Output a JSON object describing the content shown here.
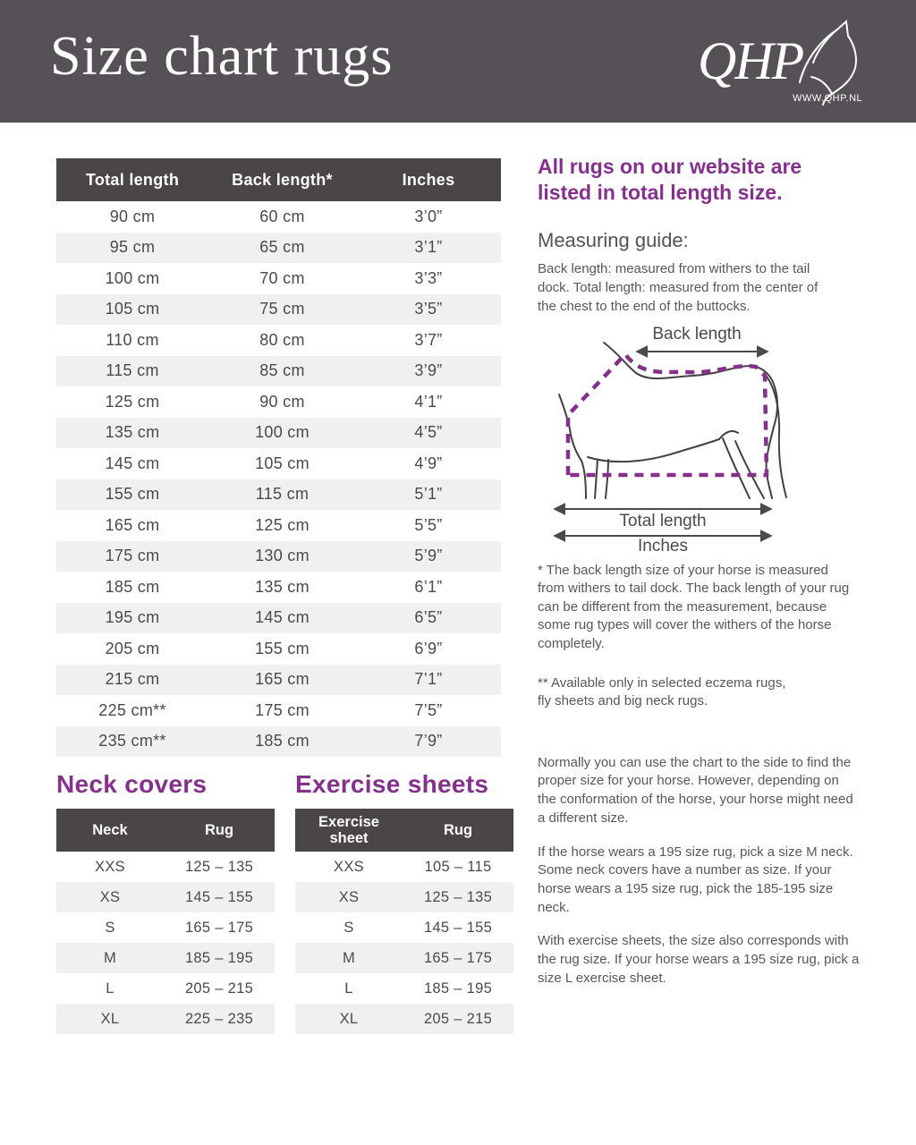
{
  "colors": {
    "accent_purple": "#84308c",
    "header_bg": "#565156",
    "table_header_bg": "#4a4549",
    "row_alt_bg": "#f1f0f1",
    "body_text": "#5b565c"
  },
  "header": {
    "title": "Size chart rugs",
    "logo_text": "QHP",
    "logo_url": "WWW.QHP.NL"
  },
  "main_table": {
    "headers": [
      "Total length",
      "Back length*",
      "Inches"
    ],
    "rows": [
      [
        "90 cm",
        "60 cm",
        "3’0”"
      ],
      [
        "95 cm",
        "65 cm",
        "3’1”"
      ],
      [
        "100 cm",
        "70 cm",
        "3’3”"
      ],
      [
        "105 cm",
        "75 cm",
        "3’5”"
      ],
      [
        "110 cm",
        "80 cm",
        "3’7”"
      ],
      [
        "115 cm",
        "85 cm",
        "3’9”"
      ],
      [
        "125 cm",
        "90 cm",
        "4’1”"
      ],
      [
        "135 cm",
        "100 cm",
        "4’5”"
      ],
      [
        "145 cm",
        "105 cm",
        "4’9”"
      ],
      [
        "155 cm",
        "115 cm",
        "5’1”"
      ],
      [
        "165 cm",
        "125 cm",
        "5’5”"
      ],
      [
        "175 cm",
        "130 cm",
        "5’9”"
      ],
      [
        "185 cm",
        "135 cm",
        "6’1”"
      ],
      [
        "195 cm",
        "145 cm",
        "6’5”"
      ],
      [
        "205 cm",
        "155 cm",
        "6’9”"
      ],
      [
        "215 cm",
        "165 cm",
        "7’1”"
      ],
      [
        "225 cm**",
        "175 cm",
        "7’5”"
      ],
      [
        "235 cm**",
        "185 cm",
        "7’9”"
      ]
    ]
  },
  "side": {
    "intro": "All rugs on our website are listed in total length size.",
    "measuring_guide_title": "Measuring guide:",
    "guide_line1": "Back length: measured from withers to the tail dock.",
    "guide_line2": "Total length: measured from the center of the chest to the end of the buttocks.",
    "diagram": {
      "back_length_label": "Back length",
      "total_length_label": "Total length",
      "inches_label": "Inches"
    },
    "footnote1": "* The back length size of your horse is measured from withers to tail dock. The back length of your rug can be different from the measurement, because some rug types will cover the withers of the horse completely.",
    "footnote2": "** Available only in selected eczema rugs,\nfly sheets and big neck rugs."
  },
  "neck_covers": {
    "title": "Neck covers",
    "headers": [
      "Neck",
      "Rug"
    ],
    "rows": [
      [
        "XXS",
        "125 – 135"
      ],
      [
        "XS",
        "145 – 155"
      ],
      [
        "S",
        "165 – 175"
      ],
      [
        "M",
        "185 – 195"
      ],
      [
        "L",
        "205 – 215"
      ],
      [
        "XL",
        "225 – 235"
      ]
    ]
  },
  "exercise_sheets": {
    "title": "Exercise sheets",
    "headers": [
      "Exercise sheet",
      "Rug"
    ],
    "rows": [
      [
        "XXS",
        "105 – 115"
      ],
      [
        "XS",
        "125 – 135"
      ],
      [
        "S",
        "145 – 155"
      ],
      [
        "M",
        "165 – 175"
      ],
      [
        "L",
        "185 – 195"
      ],
      [
        "XL",
        "205 – 215"
      ]
    ]
  },
  "bottom_text": {
    "paragraphs": [
      "Normally you can use the chart to the side to find the proper size for your horse.  However, depending on the conformation of the horse, your horse might need a different size.",
      "If the horse wears a 195 size rug, pick a size M neck. Some neck covers have a number as size. If your horse wears a 195 size rug, pick the 185-195 size neck.",
      "With exercise sheets, the size also corresponds with the rug size. If your horse wears a 195 size rug, pick a size L exercise sheet."
    ]
  }
}
